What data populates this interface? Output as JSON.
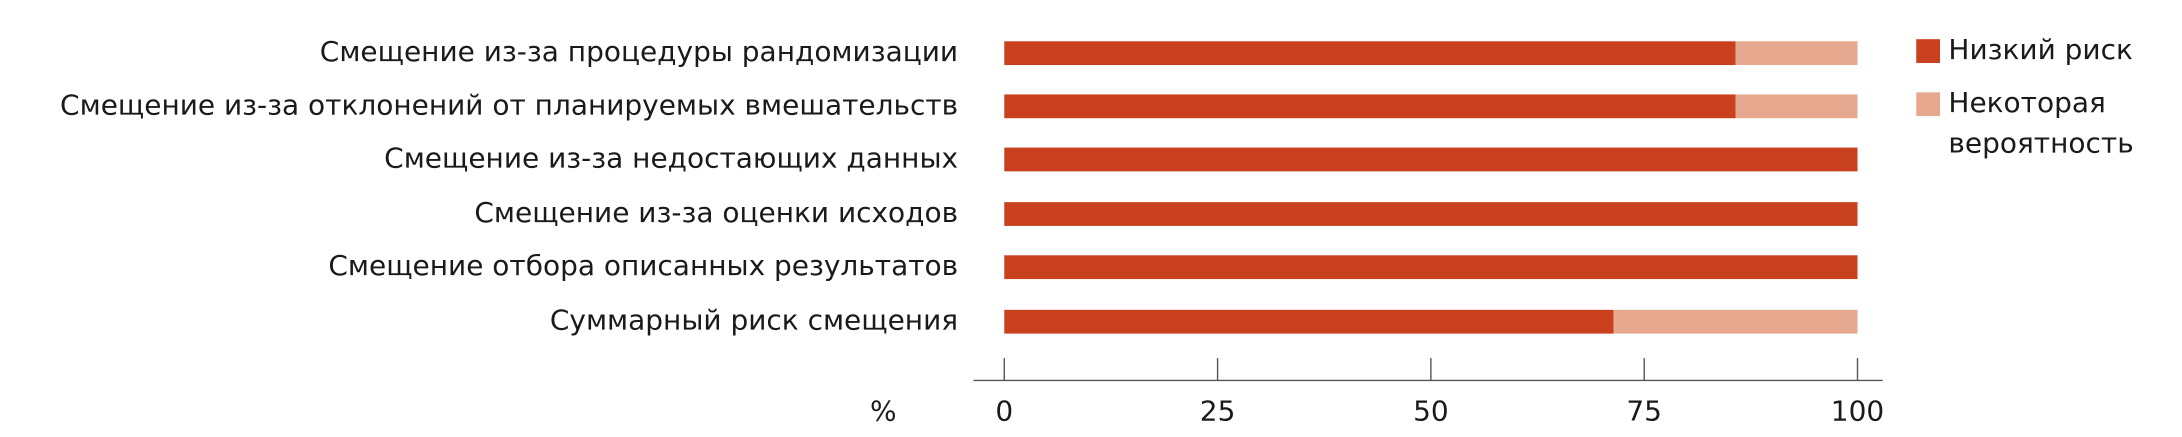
{
  "chart_data": {
    "type": "stacked-barh",
    "categories": [
      "Смещение из-за процедуры рандомизации",
      "Смещение из-за отклонений от планируемых вмешательств",
      "Смещение из-за недостающих данных",
      "Смещение из-за оценки исходов",
      "Смещение отбора описанных результатов",
      "Суммарный риск смещения"
    ],
    "series": [
      {
        "name": "Низкий риск",
        "color": "#c8401e",
        "values": [
          85.7,
          85.7,
          100,
          100,
          100,
          71.4
        ]
      },
      {
        "name": "Некоторая вероятность",
        "color": "#e6a98f",
        "values": [
          14.3,
          14.3,
          0,
          0,
          0,
          28.6
        ]
      }
    ],
    "xlabel": "%",
    "xlim": [
      0,
      100
    ],
    "xticks": [
      0,
      25,
      50,
      75,
      100
    ],
    "legend": "right"
  }
}
